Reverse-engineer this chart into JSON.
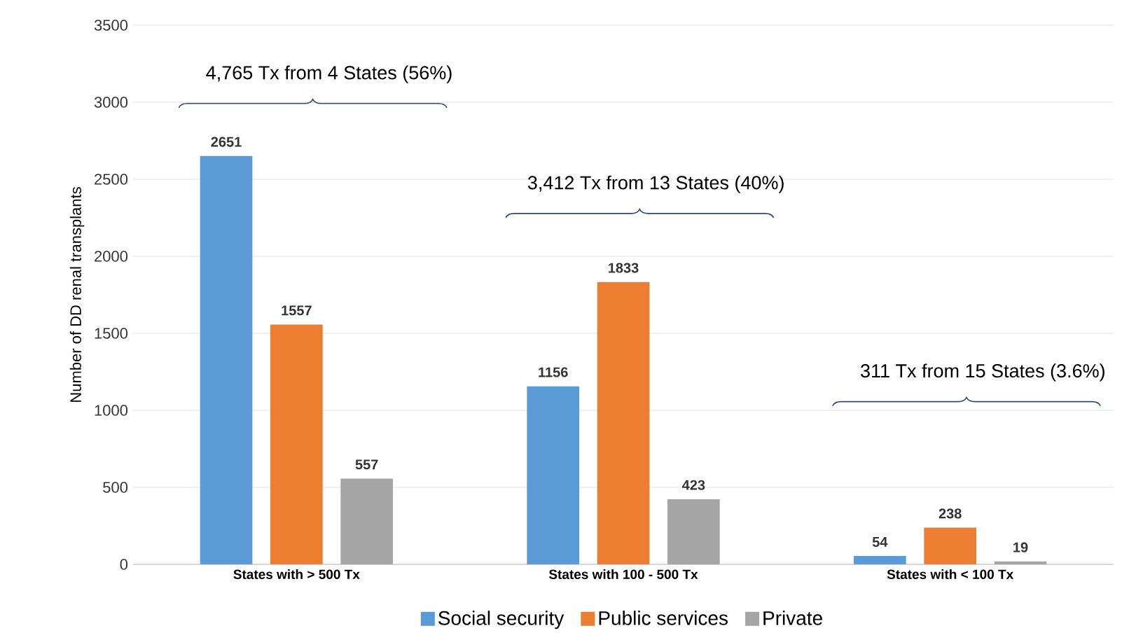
{
  "chart_data": {
    "type": "bar",
    "ylabel": "Number of DD renal transplants",
    "categories": [
      "States with > 500 Tx",
      "States with 100 - 500 Tx",
      "States with < 100 Tx"
    ],
    "series": [
      {
        "name": "Social security",
        "color": "#5b9bd5",
        "values": [
          2651,
          1156,
          54
        ]
      },
      {
        "name": "Public services",
        "color": "#ed7d31",
        "values": [
          1557,
          1833,
          238
        ]
      },
      {
        "name": "Private",
        "color": "#a5a5a5",
        "values": [
          557,
          423,
          19
        ]
      }
    ],
    "ylim": [
      0,
      3500
    ],
    "yticks": [
      0,
      500,
      1000,
      1500,
      2000,
      2500,
      3000,
      3500
    ],
    "grid": "y",
    "legend": "bottom",
    "data_labels": true,
    "annotations": [
      "4,765 Tx from 4 States (56%)",
      "3,412 Tx from 13 States (40%)",
      "311 Tx from 15 States (3.6%)"
    ]
  }
}
